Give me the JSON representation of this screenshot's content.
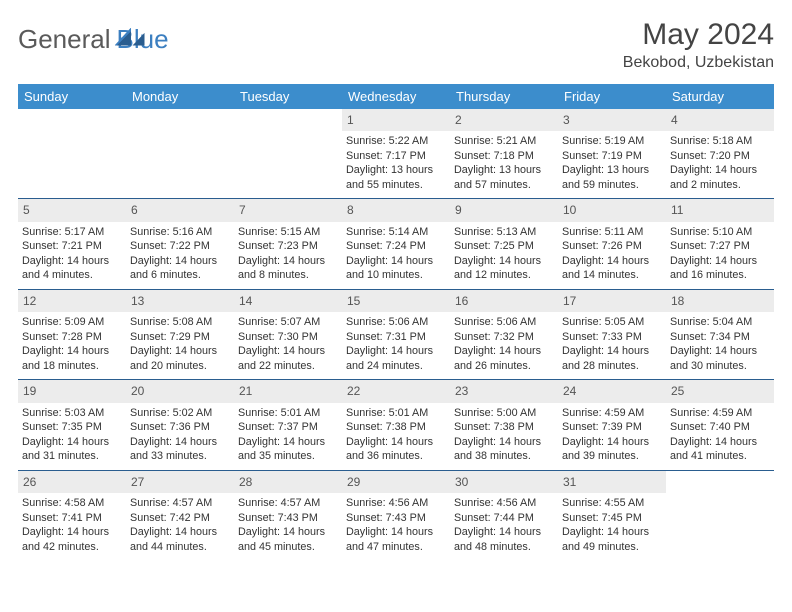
{
  "brand": {
    "part1": "General",
    "part2": "Blue"
  },
  "title": "May 2024",
  "location": "Bekobod, Uzbekistan",
  "colors": {
    "header_bg": "#3c8dcc",
    "header_text": "#ffffff",
    "daynum_bg": "#ececec",
    "cell_border": "#2a5d8f",
    "body_text": "#333333",
    "title_text": "#444444"
  },
  "weekdays": [
    "Sunday",
    "Monday",
    "Tuesday",
    "Wednesday",
    "Thursday",
    "Friday",
    "Saturday"
  ],
  "weeks": [
    [
      null,
      null,
      null,
      {
        "n": "1",
        "sr": "5:22 AM",
        "ss": "7:17 PM",
        "dl": "13 hours and 55 minutes."
      },
      {
        "n": "2",
        "sr": "5:21 AM",
        "ss": "7:18 PM",
        "dl": "13 hours and 57 minutes."
      },
      {
        "n": "3",
        "sr": "5:19 AM",
        "ss": "7:19 PM",
        "dl": "13 hours and 59 minutes."
      },
      {
        "n": "4",
        "sr": "5:18 AM",
        "ss": "7:20 PM",
        "dl": "14 hours and 2 minutes."
      }
    ],
    [
      {
        "n": "5",
        "sr": "5:17 AM",
        "ss": "7:21 PM",
        "dl": "14 hours and 4 minutes."
      },
      {
        "n": "6",
        "sr": "5:16 AM",
        "ss": "7:22 PM",
        "dl": "14 hours and 6 minutes."
      },
      {
        "n": "7",
        "sr": "5:15 AM",
        "ss": "7:23 PM",
        "dl": "14 hours and 8 minutes."
      },
      {
        "n": "8",
        "sr": "5:14 AM",
        "ss": "7:24 PM",
        "dl": "14 hours and 10 minutes."
      },
      {
        "n": "9",
        "sr": "5:13 AM",
        "ss": "7:25 PM",
        "dl": "14 hours and 12 minutes."
      },
      {
        "n": "10",
        "sr": "5:11 AM",
        "ss": "7:26 PM",
        "dl": "14 hours and 14 minutes."
      },
      {
        "n": "11",
        "sr": "5:10 AM",
        "ss": "7:27 PM",
        "dl": "14 hours and 16 minutes."
      }
    ],
    [
      {
        "n": "12",
        "sr": "5:09 AM",
        "ss": "7:28 PM",
        "dl": "14 hours and 18 minutes."
      },
      {
        "n": "13",
        "sr": "5:08 AM",
        "ss": "7:29 PM",
        "dl": "14 hours and 20 minutes."
      },
      {
        "n": "14",
        "sr": "5:07 AM",
        "ss": "7:30 PM",
        "dl": "14 hours and 22 minutes."
      },
      {
        "n": "15",
        "sr": "5:06 AM",
        "ss": "7:31 PM",
        "dl": "14 hours and 24 minutes."
      },
      {
        "n": "16",
        "sr": "5:06 AM",
        "ss": "7:32 PM",
        "dl": "14 hours and 26 minutes."
      },
      {
        "n": "17",
        "sr": "5:05 AM",
        "ss": "7:33 PM",
        "dl": "14 hours and 28 minutes."
      },
      {
        "n": "18",
        "sr": "5:04 AM",
        "ss": "7:34 PM",
        "dl": "14 hours and 30 minutes."
      }
    ],
    [
      {
        "n": "19",
        "sr": "5:03 AM",
        "ss": "7:35 PM",
        "dl": "14 hours and 31 minutes."
      },
      {
        "n": "20",
        "sr": "5:02 AM",
        "ss": "7:36 PM",
        "dl": "14 hours and 33 minutes."
      },
      {
        "n": "21",
        "sr": "5:01 AM",
        "ss": "7:37 PM",
        "dl": "14 hours and 35 minutes."
      },
      {
        "n": "22",
        "sr": "5:01 AM",
        "ss": "7:38 PM",
        "dl": "14 hours and 36 minutes."
      },
      {
        "n": "23",
        "sr": "5:00 AM",
        "ss": "7:38 PM",
        "dl": "14 hours and 38 minutes."
      },
      {
        "n": "24",
        "sr": "4:59 AM",
        "ss": "7:39 PM",
        "dl": "14 hours and 39 minutes."
      },
      {
        "n": "25",
        "sr": "4:59 AM",
        "ss": "7:40 PM",
        "dl": "14 hours and 41 minutes."
      }
    ],
    [
      {
        "n": "26",
        "sr": "4:58 AM",
        "ss": "7:41 PM",
        "dl": "14 hours and 42 minutes."
      },
      {
        "n": "27",
        "sr": "4:57 AM",
        "ss": "7:42 PM",
        "dl": "14 hours and 44 minutes."
      },
      {
        "n": "28",
        "sr": "4:57 AM",
        "ss": "7:43 PM",
        "dl": "14 hours and 45 minutes."
      },
      {
        "n": "29",
        "sr": "4:56 AM",
        "ss": "7:43 PM",
        "dl": "14 hours and 47 minutes."
      },
      {
        "n": "30",
        "sr": "4:56 AM",
        "ss": "7:44 PM",
        "dl": "14 hours and 48 minutes."
      },
      {
        "n": "31",
        "sr": "4:55 AM",
        "ss": "7:45 PM",
        "dl": "14 hours and 49 minutes."
      },
      null
    ]
  ],
  "labels": {
    "sunrise": "Sunrise:",
    "sunset": "Sunset:",
    "daylight": "Daylight:"
  }
}
